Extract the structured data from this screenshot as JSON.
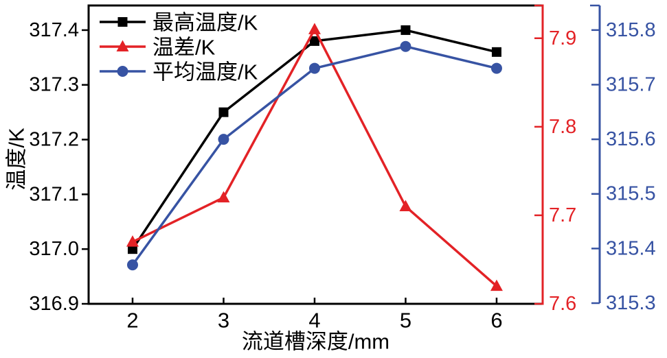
{
  "chart_data": {
    "type": "line",
    "title": "",
    "xlabel": "流道槽深度/mm",
    "x": [
      2,
      3,
      4,
      5,
      6
    ],
    "xlim": [
      1.517,
      6.506
    ],
    "x_tick_labels": [
      "2",
      "3",
      "4",
      "5",
      "6"
    ],
    "grid": false,
    "legend_position": "inside-top-left",
    "series": [
      {
        "name": "最高温度/K",
        "axis": "left",
        "color": "#000000",
        "marker": "square",
        "values": [
          317.0,
          317.25,
          317.38,
          317.4,
          317.36
        ]
      },
      {
        "name": "温差/K",
        "axis": "right_inner",
        "color": "#e32226",
        "marker": "triangle",
        "values": [
          7.67,
          7.72,
          7.91,
          7.71,
          7.62
        ]
      },
      {
        "name": "平均温度/K",
        "axis": "right_outer",
        "color": "#3753a3",
        "marker": "circle",
        "values": [
          315.37,
          315.6,
          315.73,
          315.77,
          315.73
        ]
      }
    ],
    "axes": {
      "left": {
        "label": "温度/K",
        "color": "#000000",
        "min": 316.9,
        "max": 317.445,
        "tick_labels": [
          "316.9",
          "317.0",
          "317.1",
          "317.2",
          "317.3",
          "317.4"
        ]
      },
      "right_inner": {
        "label": "",
        "color": "#e32226",
        "min": 7.6,
        "max": 7.937,
        "tick_labels": [
          "7.6",
          "7.7",
          "7.8",
          "7.9"
        ]
      },
      "right_outer": {
        "label": "",
        "color": "#3753a3",
        "min": 315.3,
        "max": 315.845,
        "tick_labels": [
          "315.3",
          "315.4",
          "315.5",
          "315.6",
          "315.7",
          "315.8"
        ]
      }
    }
  }
}
